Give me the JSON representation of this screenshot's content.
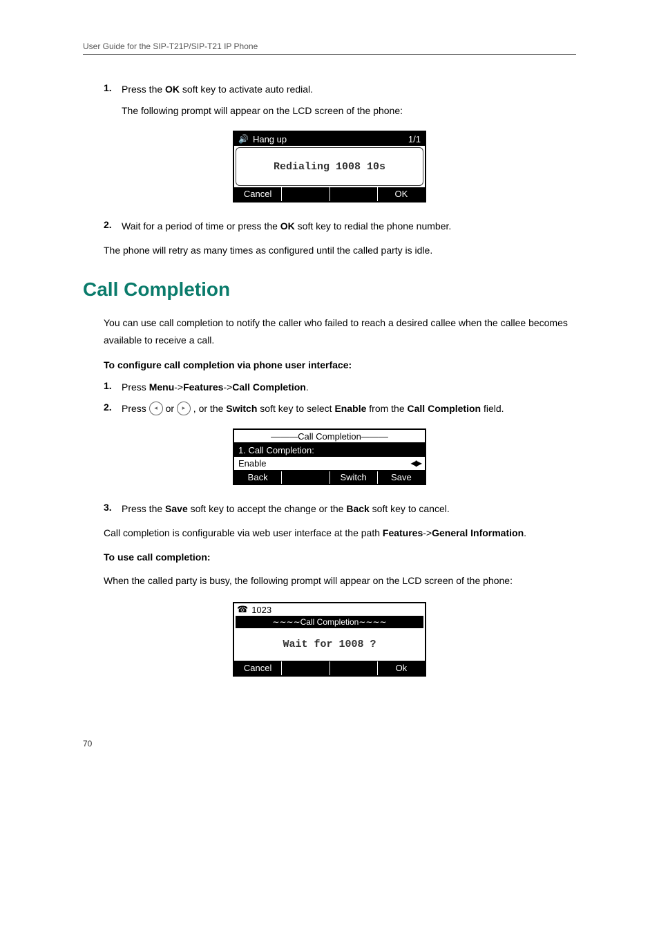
{
  "header": {
    "guide_title": "User Guide for the SIP-T21P/SIP-T21 IP Phone"
  },
  "auto_redial": {
    "step1_num": "1.",
    "step1_pre": "Press the ",
    "step1_b1": "OK",
    "step1_post": " soft key to activate auto redial.",
    "step1_sub": "The following prompt will appear on the LCD screen of the phone:",
    "lcd": {
      "title_left": "Hang up",
      "title_right": "1/1",
      "body": "Redialing 1008 10s",
      "sk1": "Cancel",
      "sk2": "",
      "sk3": "",
      "sk4": "OK"
    },
    "step2_num": "2.",
    "step2_pre": "Wait for a period of time or press the ",
    "step2_b1": "OK",
    "step2_post": " soft key to redial the phone number.",
    "followup": "The phone will retry as many times as configured until the called party is idle."
  },
  "call_completion": {
    "heading": "Call Completion",
    "intro": "You can use call completion to notify the caller who failed to reach a desired callee when the callee becomes available to receive a call.",
    "config_heading": "To configure call completion via phone user interface:",
    "step1_num": "1.",
    "step1_pre": "Press ",
    "step1_b1": "Menu",
    "step1_sep1": "->",
    "step1_b2": "Features",
    "step1_sep2": "->",
    "step1_b3": "Call Completion",
    "step1_post": ".",
    "step2_num": "2.",
    "step2_pre": "Press ",
    "step2_mid": " or ",
    "step2_mid2": " , or the ",
    "step2_b1": "Switch",
    "step2_mid3": " soft key to select ",
    "step2_b2": "Enable",
    "step2_mid4": " from the ",
    "step2_b3": "Call Completion",
    "step2_post": " field.",
    "lcd": {
      "title": "Call Completion",
      "row_label": "1. Call Completion:",
      "row_value": "Enable",
      "sk1": "Back",
      "sk2": "",
      "sk3": "Switch",
      "sk4": "Save"
    },
    "step3_num": "3.",
    "step3_pre": "Press the ",
    "step3_b1": "Save",
    "step3_mid": " soft key to accept the change or the ",
    "step3_b2": "Back",
    "step3_post": " soft key to cancel.",
    "webpath_pre": "Call completion is configurable via web user interface at the path ",
    "webpath_b1": "Features",
    "webpath_sep": "->",
    "webpath_b2": "General Information",
    "webpath_post": ".",
    "use_heading": "To use call completion:",
    "use_intro": "When the called party is busy, the following prompt will appear on the LCD screen of the phone:",
    "lcd3": {
      "title_num": "1023",
      "banner": "∼∼∼∼Call Completion∼∼∼∼",
      "body": "Wait for 1008 ?",
      "sk1": "Cancel",
      "sk2": "",
      "sk3": "",
      "sk4": "Ok"
    }
  },
  "footer": {
    "page_number": "70"
  },
  "colors": {
    "heading_color": "#0a7b6b",
    "text_color": "#000000",
    "bg_color": "#ffffff"
  }
}
